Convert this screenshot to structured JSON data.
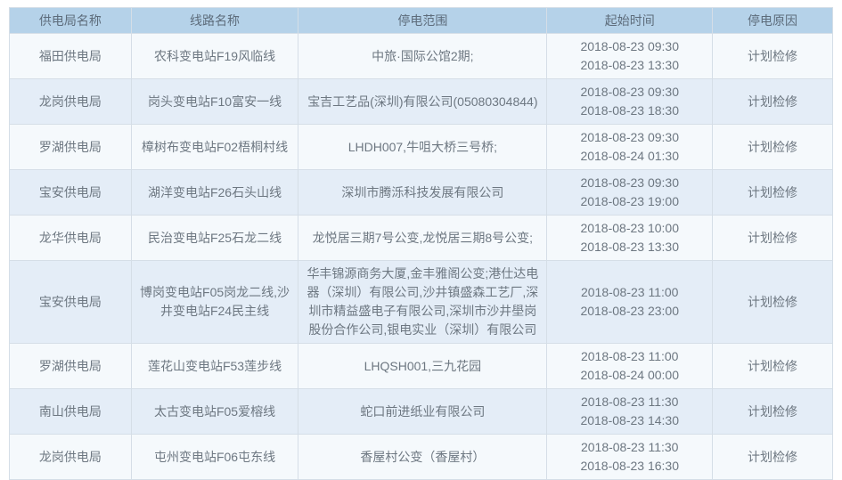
{
  "colors": {
    "header_bg": "#b5d2e9",
    "row_odd_bg": "#f5f9fc",
    "row_even_bg": "#e4edf7",
    "border": "#d5dee7",
    "text": "#6d7781"
  },
  "table": {
    "headers": {
      "bureau": "供电局名称",
      "line": "线路名称",
      "scope": "停电范围",
      "time": "起始时间",
      "reason": "停电原因"
    },
    "rows": [
      {
        "bureau": "福田供电局",
        "line": "农科变电站F19风临线",
        "scope": "中旅·国际公馆2期;",
        "time_start": "2018-08-23 09:30",
        "time_end": "2018-08-23 13:30",
        "reason": "计划检修"
      },
      {
        "bureau": "龙岗供电局",
        "line": "岗头变电站F10富安一线",
        "scope": "宝吉工艺品(深圳)有限公司(05080304844)",
        "time_start": "2018-08-23 09:30",
        "time_end": "2018-08-23 18:30",
        "reason": "计划检修"
      },
      {
        "bureau": "罗湖供电局",
        "line": "樟树布变电站F02梧桐村线",
        "scope": "LHDH007,牛咀大桥三号桥;",
        "time_start": "2018-08-23 09:30",
        "time_end": "2018-08-24 01:30",
        "reason": "计划检修"
      },
      {
        "bureau": "宝安供电局",
        "line": "湖洋变电站F26石头山线",
        "scope": "深圳市腾泺科技发展有限公司",
        "time_start": "2018-08-23 09:30",
        "time_end": "2018-08-23 19:00",
        "reason": "计划检修"
      },
      {
        "bureau": "龙华供电局",
        "line": "民治变电站F25石龙二线",
        "scope": "龙悦居三期7号公变,龙悦居三期8号公变;",
        "time_start": "2018-08-23 10:00",
        "time_end": "2018-08-23 13:30",
        "reason": "计划检修"
      },
      {
        "bureau": "宝安供电局",
        "line": "博岗变电站F05岗龙二线,沙井变电站F24民主线",
        "scope": "华丰锦源商务大厦,金丰雅阁公变;港仕达电器（深圳）有限公司,沙井镇盛森工艺厂,深圳市精益盛电子有限公司,深圳市沙井壆岗股份合作公司,银电实业（深圳）有限公司",
        "time_start": "2018-08-23 11:00",
        "time_end": "2018-08-23 23:00",
        "reason": "计划检修"
      },
      {
        "bureau": "罗湖供电局",
        "line": "莲花山变电站F53莲步线",
        "scope": "LHQSH001,三九花园",
        "time_start": "2018-08-23 11:00",
        "time_end": "2018-08-24 00:00",
        "reason": "计划检修"
      },
      {
        "bureau": "南山供电局",
        "line": "太古变电站F05爱榕线",
        "scope": "蛇口前进纸业有限公司",
        "time_start": "2018-08-23 11:30",
        "time_end": "2018-08-23 14:30",
        "reason": "计划检修"
      },
      {
        "bureau": "龙岗供电局",
        "line": "屯州变电站F06屯东线",
        "scope": "香屋村公变（香屋村）",
        "time_start": "2018-08-23 11:30",
        "time_end": "2018-08-23 16:30",
        "reason": "计划检修"
      }
    ]
  }
}
